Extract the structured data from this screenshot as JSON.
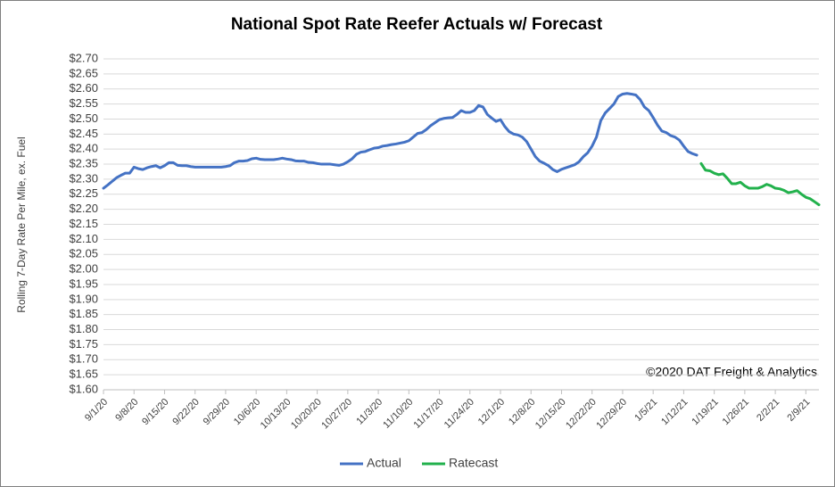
{
  "chart_data": {
    "type": "line",
    "title": "National Spot Rate Reefer Actuals w/ Forecast",
    "y_label": "Rolling 7-Day Rate Per Mile, ex. Fuel",
    "annotation": "©2020 DAT Freight & Analytics",
    "legend": "bottom",
    "grid": true,
    "categories": [
      "9/1/20",
      null,
      null,
      null,
      null,
      null,
      null,
      "9/8/20",
      null,
      null,
      null,
      null,
      null,
      null,
      "9/15/20",
      null,
      null,
      null,
      null,
      null,
      null,
      "9/22/20",
      null,
      null,
      null,
      null,
      null,
      null,
      "9/29/20",
      null,
      null,
      null,
      null,
      null,
      null,
      "10/6/20",
      null,
      null,
      null,
      null,
      null,
      null,
      "10/13/20",
      null,
      null,
      null,
      null,
      null,
      null,
      "10/20/20",
      null,
      null,
      null,
      null,
      null,
      null,
      "10/27/20",
      null,
      null,
      null,
      null,
      null,
      null,
      "11/3/20",
      null,
      null,
      null,
      null,
      null,
      null,
      "11/10/20",
      null,
      null,
      null,
      null,
      null,
      null,
      "11/17/20",
      null,
      null,
      null,
      null,
      null,
      null,
      "11/24/20",
      null,
      null,
      null,
      null,
      null,
      null,
      "12/1/20",
      null,
      null,
      null,
      null,
      null,
      null,
      "12/8/20",
      null,
      null,
      null,
      null,
      null,
      null,
      "12/15/20",
      null,
      null,
      null,
      null,
      null,
      null,
      "12/22/20",
      null,
      null,
      null,
      null,
      null,
      null,
      "12/29/20",
      null,
      null,
      null,
      null,
      null,
      null,
      "1/5/21",
      null,
      null,
      null,
      null,
      null,
      null,
      "1/12/21",
      null,
      null,
      null,
      null,
      null,
      null,
      "1/19/21",
      null,
      null,
      null,
      null,
      null,
      null,
      "1/26/21",
      null,
      null,
      null,
      null,
      null,
      null,
      "2/2/21",
      null,
      null,
      null,
      null,
      null,
      null,
      "2/9/21",
      null,
      null,
      null
    ],
    "series": [
      {
        "name": "Actual",
        "color": "#4472c4",
        "values": [
          2.27,
          2.281,
          2.293,
          2.305,
          2.313,
          2.32,
          2.32,
          2.34,
          2.335,
          2.332,
          2.338,
          2.342,
          2.345,
          2.338,
          2.345,
          2.355,
          2.355,
          2.346,
          2.345,
          2.345,
          2.342,
          2.34,
          2.34,
          2.34,
          2.34,
          2.34,
          2.34,
          2.34,
          2.342,
          2.345,
          2.355,
          2.36,
          2.36,
          2.362,
          2.368,
          2.37,
          2.366,
          2.365,
          2.365,
          2.365,
          2.367,
          2.37,
          2.367,
          2.365,
          2.361,
          2.36,
          2.36,
          2.356,
          2.355,
          2.352,
          2.35,
          2.35,
          2.35,
          2.348,
          2.346,
          2.35,
          2.358,
          2.368,
          2.383,
          2.39,
          2.392,
          2.398,
          2.403,
          2.405,
          2.41,
          2.412,
          2.415,
          2.417,
          2.42,
          2.423,
          2.428,
          2.44,
          2.452,
          2.455,
          2.465,
          2.478,
          2.488,
          2.498,
          2.502,
          2.504,
          2.505,
          2.515,
          2.528,
          2.522,
          2.522,
          2.528,
          2.545,
          2.54,
          2.515,
          2.503,
          2.492,
          2.498,
          2.475,
          2.458,
          2.45,
          2.447,
          2.44,
          2.425,
          2.4,
          2.375,
          2.36,
          2.353,
          2.345,
          2.332,
          2.325,
          2.333,
          2.338,
          2.343,
          2.348,
          2.358,
          2.375,
          2.388,
          2.41,
          2.44,
          2.495,
          2.52,
          2.535,
          2.55,
          2.575,
          2.583,
          2.585,
          2.583,
          2.58,
          2.565,
          2.54,
          2.528,
          2.505,
          2.48,
          2.46,
          2.455,
          2.445,
          2.44,
          2.43,
          2.41,
          2.392,
          2.385,
          2.38,
          null,
          null,
          null,
          null,
          null,
          null,
          null,
          null,
          null,
          null,
          null,
          null,
          null,
          null,
          null,
          null,
          null,
          null,
          null,
          null,
          null,
          null,
          null,
          null,
          null,
          null,
          null,
          null
        ]
      },
      {
        "name": "Ratecast",
        "color": "#22b14c",
        "values": [
          null,
          null,
          null,
          null,
          null,
          null,
          null,
          null,
          null,
          null,
          null,
          null,
          null,
          null,
          null,
          null,
          null,
          null,
          null,
          null,
          null,
          null,
          null,
          null,
          null,
          null,
          null,
          null,
          null,
          null,
          null,
          null,
          null,
          null,
          null,
          null,
          null,
          null,
          null,
          null,
          null,
          null,
          null,
          null,
          null,
          null,
          null,
          null,
          null,
          null,
          null,
          null,
          null,
          null,
          null,
          null,
          null,
          null,
          null,
          null,
          null,
          null,
          null,
          null,
          null,
          null,
          null,
          null,
          null,
          null,
          null,
          null,
          null,
          null,
          null,
          null,
          null,
          null,
          null,
          null,
          null,
          null,
          null,
          null,
          null,
          null,
          null,
          null,
          null,
          null,
          null,
          null,
          null,
          null,
          null,
          null,
          null,
          null,
          null,
          null,
          null,
          null,
          null,
          null,
          null,
          null,
          null,
          null,
          null,
          null,
          null,
          null,
          null,
          null,
          null,
          null,
          null,
          null,
          null,
          null,
          null,
          null,
          null,
          null,
          null,
          null,
          null,
          null,
          null,
          null,
          null,
          null,
          null,
          null,
          null,
          null,
          null,
          2.352,
          2.33,
          2.328,
          2.32,
          2.315,
          2.318,
          2.303,
          2.285,
          2.285,
          2.29,
          2.278,
          2.27,
          2.27,
          2.27,
          2.275,
          2.283,
          2.278,
          2.27,
          2.268,
          2.263,
          2.255,
          2.258,
          2.262,
          2.25,
          2.24,
          2.235,
          2.225,
          2.215
        ]
      }
    ],
    "ylim": [
      1.6,
      2.7
    ],
    "yticks": [
      {
        "value": 1.6,
        "label": "$1.60"
      },
      {
        "value": 1.65,
        "label": "$1.65"
      },
      {
        "value": 1.7,
        "label": "$1.70"
      },
      {
        "value": 1.75,
        "label": "$1.75"
      },
      {
        "value": 1.8,
        "label": "$1.80"
      },
      {
        "value": 1.85,
        "label": "$1.85"
      },
      {
        "value": 1.9,
        "label": "$1.90"
      },
      {
        "value": 1.95,
        "label": "$1.95"
      },
      {
        "value": 2.0,
        "label": "$2.00"
      },
      {
        "value": 2.05,
        "label": "$2.05"
      },
      {
        "value": 2.1,
        "label": "$2.10"
      },
      {
        "value": 2.15,
        "label": "$2.15"
      },
      {
        "value": 2.2,
        "label": "$2.20"
      },
      {
        "value": 2.25,
        "label": "$2.25"
      },
      {
        "value": 2.3,
        "label": "$2.30"
      },
      {
        "value": 2.35,
        "label": "$2.35"
      },
      {
        "value": 2.4,
        "label": "$2.40"
      },
      {
        "value": 2.45,
        "label": "$2.45"
      },
      {
        "value": 2.5,
        "label": "$2.50"
      },
      {
        "value": 2.55,
        "label": "$2.55"
      },
      {
        "value": 2.6,
        "label": "$2.60"
      },
      {
        "value": 2.65,
        "label": "$2.65"
      },
      {
        "value": 2.7,
        "label": "$2.70"
      }
    ]
  }
}
